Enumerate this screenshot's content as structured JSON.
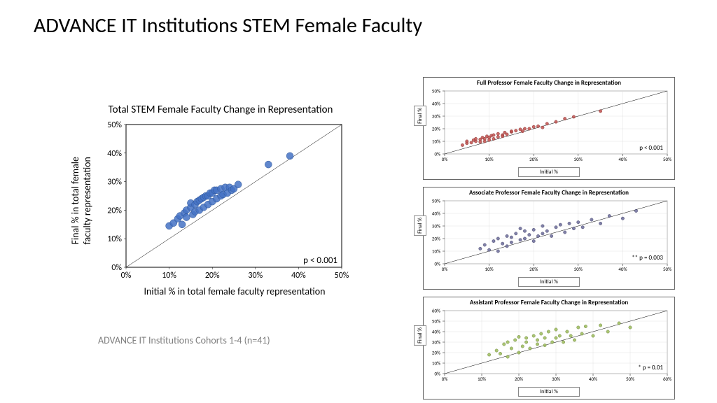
{
  "slide_title": "ADVANCE IT Institutions STEM Female Faculty",
  "footnote": "ADVANCE IT Institutions Cohorts 1-4 (n=41)",
  "main_chart": {
    "type": "scatter",
    "title": "Total STEM Female Faculty Change in Representation",
    "xlabel": "Initial % in total female faculty representation",
    "ylabel": "Final % in total female\nfaculty representation",
    "xlim": [
      0,
      50
    ],
    "ylim": [
      0,
      50
    ],
    "xtick_step": 10,
    "ytick_step": 10,
    "tick_suffix": "%",
    "p_value": "p < 0.001",
    "marker_color": "#4472c4",
    "marker_stroke": "#2e5597",
    "marker_radius": 5,
    "diag_line_color": "#000000",
    "diag_line_width": 0.5,
    "plot_border_color": "#000000",
    "background_color": "#ffffff",
    "label_fontsize": 14,
    "tick_fontsize": 12,
    "title_fontsize": 15,
    "data": [
      [
        10,
        14.5
      ],
      [
        11,
        15.5
      ],
      [
        12,
        17
      ],
      [
        12.5,
        18
      ],
      [
        13,
        15
      ],
      [
        13.5,
        19
      ],
      [
        14,
        17.5
      ],
      [
        14,
        20
      ],
      [
        15,
        21
      ],
      [
        15,
        22.5
      ],
      [
        15.5,
        18.5
      ],
      [
        16,
        22
      ],
      [
        16,
        19.5
      ],
      [
        16.5,
        23
      ],
      [
        17,
        23.5
      ],
      [
        17,
        20
      ],
      [
        17.5,
        24
      ],
      [
        18,
        24.5
      ],
      [
        18,
        21
      ],
      [
        18.5,
        25
      ],
      [
        19,
        25
      ],
      [
        19,
        22
      ],
      [
        19.5,
        26
      ],
      [
        20,
        26
      ],
      [
        20,
        23
      ],
      [
        20.5,
        27
      ],
      [
        21,
        24
      ],
      [
        21,
        27
      ],
      [
        22,
        27.5
      ],
      [
        22,
        25
      ],
      [
        22.5,
        25.5
      ],
      [
        23,
        28
      ],
      [
        23.5,
        26
      ],
      [
        24,
        28
      ],
      [
        24.5,
        27
      ],
      [
        25,
        27.5
      ],
      [
        26,
        29
      ],
      [
        33,
        36
      ],
      [
        38,
        39
      ]
    ]
  },
  "small_charts": [
    {
      "type": "scatter",
      "title": "Full Professor Female Faculty Change in Representation",
      "xlabel": "Initial %",
      "ylabel": "Final %",
      "xlim": [
        0,
        50
      ],
      "ylim": [
        0,
        50
      ],
      "xtick_step": 10,
      "ytick_step": 10,
      "tick_suffix": "%",
      "p_value": "p < 0.001",
      "marker_color": "#c0504d",
      "marker_stroke": "#8c3a38",
      "marker_radius": 2.2,
      "data": [
        [
          4,
          7
        ],
        [
          5,
          8.5
        ],
        [
          5,
          10
        ],
        [
          6,
          9
        ],
        [
          6.5,
          11
        ],
        [
          7,
          10
        ],
        [
          7,
          12
        ],
        [
          8,
          11.5
        ],
        [
          8,
          9.5
        ],
        [
          8.5,
          13
        ],
        [
          9,
          12
        ],
        [
          9,
          10
        ],
        [
          9.5,
          14
        ],
        [
          10,
          11
        ],
        [
          10,
          13
        ],
        [
          10.5,
          14.5
        ],
        [
          11,
          12
        ],
        [
          11,
          15
        ],
        [
          12,
          13.5
        ],
        [
          12,
          16
        ],
        [
          13,
          15
        ],
        [
          13,
          14
        ],
        [
          13.5,
          17
        ],
        [
          14,
          15.5
        ],
        [
          15,
          17.5
        ],
        [
          15,
          18
        ],
        [
          16,
          18.5
        ],
        [
          17,
          19.5
        ],
        [
          17.5,
          18
        ],
        [
          18,
          20
        ],
        [
          19,
          20
        ],
        [
          20,
          21.5
        ],
        [
          21,
          22
        ],
        [
          22,
          21
        ],
        [
          23,
          24
        ],
        [
          25,
          25.5
        ],
        [
          27,
          28
        ],
        [
          29,
          29.5
        ],
        [
          35,
          34
        ]
      ]
    },
    {
      "type": "scatter",
      "title": "Associate Professor Female Faculty Change in Representation",
      "xlabel": "Initial %",
      "ylabel": "Final %",
      "xlim": [
        0,
        50
      ],
      "ylim": [
        0,
        50
      ],
      "xtick_step": 10,
      "ytick_step": 10,
      "tick_suffix": "%",
      "p_value": "** p = 0.003",
      "marker_color": "#6b6b99",
      "marker_stroke": "#4a4a70",
      "marker_radius": 2.2,
      "data": [
        [
          8,
          12
        ],
        [
          9,
          15
        ],
        [
          10,
          11
        ],
        [
          11,
          18
        ],
        [
          12,
          10
        ],
        [
          12,
          20
        ],
        [
          13,
          16
        ],
        [
          14,
          22
        ],
        [
          14,
          14
        ],
        [
          15,
          21
        ],
        [
          15,
          17
        ],
        [
          16,
          24
        ],
        [
          17,
          19
        ],
        [
          17,
          28
        ],
        [
          18,
          20
        ],
        [
          18,
          26
        ],
        [
          19,
          23
        ],
        [
          20,
          18
        ],
        [
          20,
          27
        ],
        [
          21,
          22
        ],
        [
          22,
          30
        ],
        [
          22,
          24
        ],
        [
          23,
          26
        ],
        [
          24,
          22
        ],
        [
          25,
          29
        ],
        [
          26,
          31
        ],
        [
          27,
          25
        ],
        [
          28,
          32
        ],
        [
          29,
          28
        ],
        [
          30,
          33
        ],
        [
          31,
          29
        ],
        [
          33,
          35
        ],
        [
          35,
          32
        ],
        [
          37,
          38
        ],
        [
          40,
          36
        ],
        [
          43,
          42
        ]
      ]
    },
    {
      "type": "scatter",
      "title": "Assistant Professor Female Faculty Change in Representation",
      "xlabel": "Initial %",
      "ylabel": "Final %",
      "xlim": [
        0,
        60
      ],
      "ylim": [
        0,
        60
      ],
      "xtick_step": 10,
      "ytick_step": 10,
      "tick_suffix": "%",
      "p_value": "* p = 0.01",
      "marker_color": "#9bbb59",
      "marker_stroke": "#71893f",
      "marker_radius": 2.2,
      "data": [
        [
          12,
          18
        ],
        [
          14,
          22
        ],
        [
          15,
          19
        ],
        [
          16,
          28
        ],
        [
          17,
          16
        ],
        [
          17,
          30
        ],
        [
          18,
          24
        ],
        [
          19,
          32
        ],
        [
          20,
          20
        ],
        [
          20,
          35
        ],
        [
          21,
          26
        ],
        [
          22,
          30
        ],
        [
          22,
          34
        ],
        [
          23,
          24
        ],
        [
          24,
          36
        ],
        [
          25,
          32
        ],
        [
          25,
          28
        ],
        [
          26,
          38
        ],
        [
          27,
          27
        ],
        [
          27,
          34
        ],
        [
          28,
          40
        ],
        [
          29,
          30
        ],
        [
          30,
          42
        ],
        [
          30,
          34
        ],
        [
          31,
          36
        ],
        [
          32,
          30
        ],
        [
          33,
          40
        ],
        [
          34,
          36
        ],
        [
          35,
          32
        ],
        [
          36,
          44
        ],
        [
          37,
          38
        ],
        [
          38,
          45
        ],
        [
          40,
          36
        ],
        [
          42,
          46
        ],
        [
          44,
          40
        ],
        [
          47,
          48
        ],
        [
          50,
          44
        ]
      ]
    }
  ]
}
